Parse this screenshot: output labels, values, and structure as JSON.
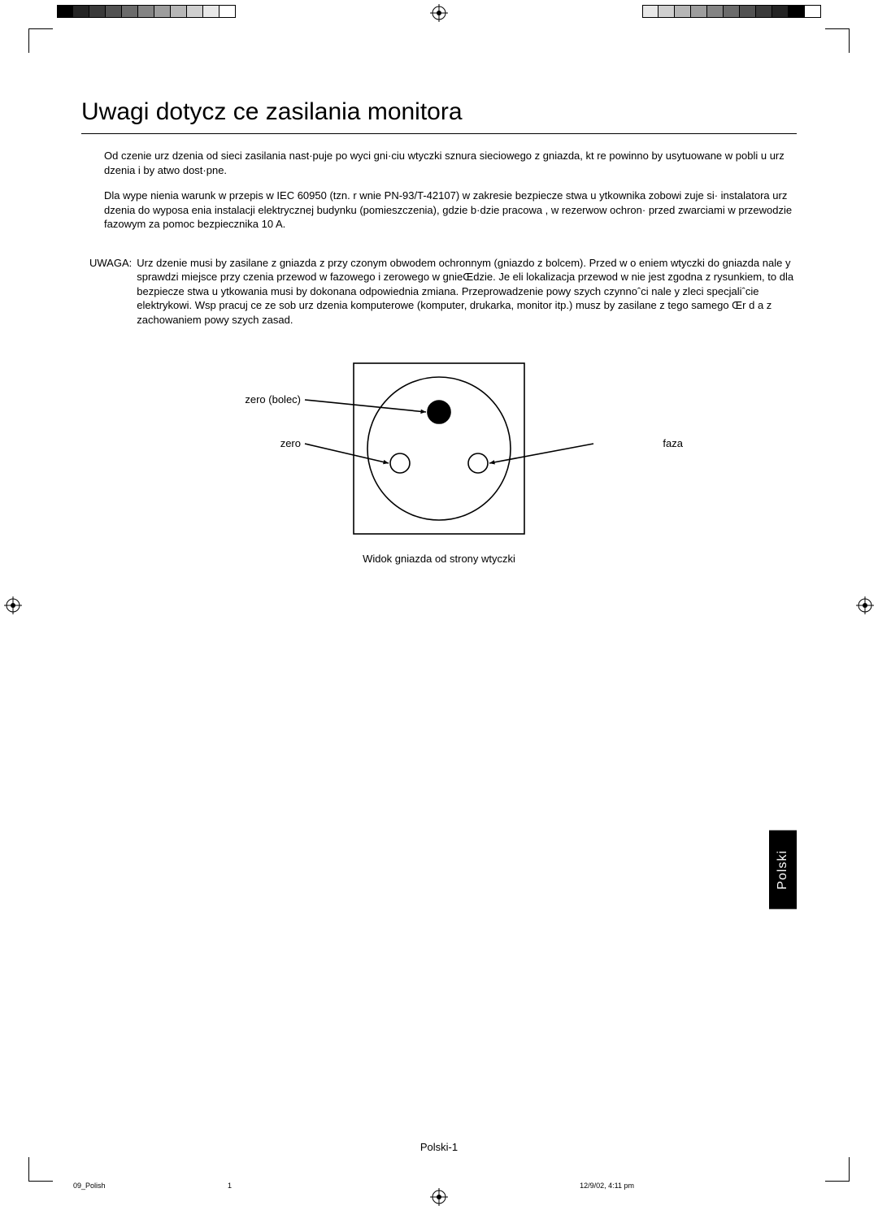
{
  "title": "Uwagi dotycz ce zasilania monitora",
  "paragraphs": {
    "p1": "Od czenie urz dzenia od sieci zasilania nast·puje po wyci gni·ciu wtyczki sznura sieciowego z gniazda, kt re powinno by usytuowane w pobli u urz dzenia i by   atwo dost·pne.",
    "p2": "Dla wype nienia warunk w przepis w IEC 60950 (tzn. r wnie  PN-93/T-42107) w zakresie bezpiecze stwa u ytkownika zobowi zuje si· instalatora urz dzenia do wyposa enia instalacji elektrycznej budynku (pomieszczenia), gdzie b·dzie pracowa , w rezerwow  ochron· przed zwarciami w przewodzie fazowym za pomoc  bezpiecznika 10 A."
  },
  "note": {
    "label": "UWAGA:",
    "body": "Urz dzenie musi by  zasilane z gniazda z przy czonym obwodem ochronnym (gniazdo z bolcem). Przed w o eniem wtyczki do gniazda nale y sprawdzi  miejsce przy czenia przewod w fazowego i zerowego w gnieŒdzie. Je eli lokalizacja przewod w nie jest zgodna z rysunkiem, to dla bezpiecze stwa u ytkowania musi by  dokonana odpowiednia zmiana. Przeprowadzenie powy szych czynnoˆci nale y zleci  specjaliˆcie elektrykowi. Wsp pracuj ce ze sob  urz dzenia komputerowe (komputer, drukarka, monitor itp.) musz  by zasilane z tego samego Œr d a z zachowaniem powy szych zasad."
  },
  "diagram": {
    "caption": "Widok gniazda od strony wtyczki",
    "labels": {
      "zero_bolec": "zero (bolec)",
      "zero": "zero",
      "faza": "faza"
    },
    "frame_size": 210,
    "circle_r": 88,
    "pin_top_r": 14,
    "hole_r": 12,
    "colors": {
      "stroke": "#000000",
      "fill_top": "#000000",
      "fill_holes": "#ffffff",
      "bg": "#ffffff"
    },
    "line_width": 1.6
  },
  "wedge_colors_left": [
    "#000000",
    "#242424",
    "#3a3a3a",
    "#525252",
    "#6b6b6b",
    "#848484",
    "#9d9d9d",
    "#b6b6b6",
    "#cfcfcf",
    "#e8e8e8",
    "#ffffff"
  ],
  "wedge_colors_right": [
    "#e8e8e8",
    "#cfcfcf",
    "#b6b6b6",
    "#9d9d9d",
    "#848484",
    "#6b6b6b",
    "#525252",
    "#3a3a3a",
    "#242424",
    "#000000",
    "#ffffff"
  ],
  "lang_tab": "Polski",
  "footer": {
    "page_number": "Polski-1",
    "left": "09_Polish",
    "mid": "1",
    "right": "12/9/02, 4:11 pm"
  },
  "fontsize": {
    "title": 30,
    "body": 13,
    "footer_small": 9
  }
}
